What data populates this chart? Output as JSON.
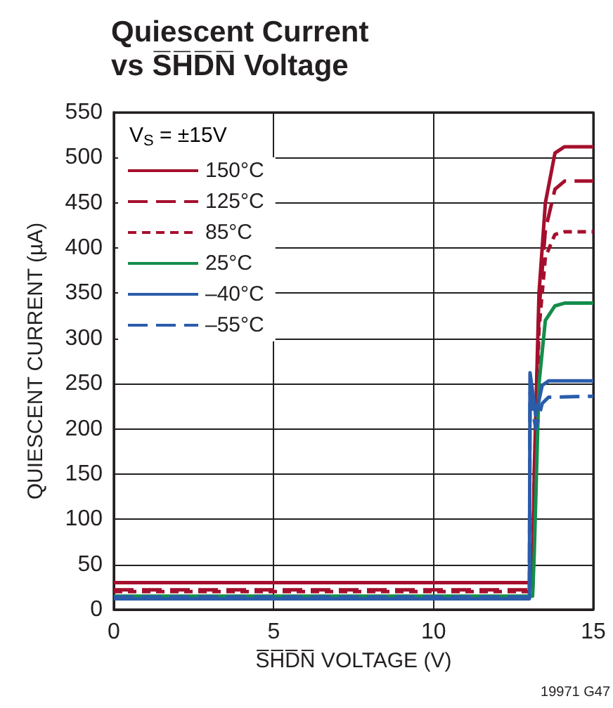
{
  "chart_data": {
    "type": "line",
    "title": "Quiescent Current",
    "subtitle": "vs S̅H̅D̅N̅ Voltage",
    "xlabel": "S̅H̅D̅N̅ VOLTAGE (V)",
    "ylabel": "QUIESCENT CURRENT (µA)",
    "legend_title": "V$_{S}$ = ±15V",
    "annotations": [
      "19971 G47"
    ],
    "xlim": [
      0,
      15
    ],
    "xticks": [
      0,
      5,
      10,
      15
    ],
    "ylim": [
      0,
      550
    ],
    "yticks": [
      0,
      50,
      100,
      150,
      200,
      250,
      300,
      350,
      400,
      450,
      500,
      550
    ],
    "grid": true,
    "legend": "top left",
    "marker": "none",
    "series": [
      {
        "name": "150°C",
        "color": "#a50f2d",
        "line_style": "solid",
        "x": [
          0,
          13.1,
          13.15,
          13.3,
          13.5,
          13.8,
          14.1,
          15
        ],
        "values": [
          30,
          30,
          150,
          350,
          450,
          505,
          512,
          512
        ]
      },
      {
        "name": "125°C",
        "color": "#a50f2d",
        "line_style": "dashed",
        "x": [
          0,
          13.1,
          13.15,
          13.3,
          13.5,
          13.8,
          14.1,
          15
        ],
        "values": [
          22,
          22,
          140,
          330,
          420,
          465,
          474,
          474
        ]
      },
      {
        "name": "85°C",
        "color": "#a50f2d",
        "line_style": "dotted",
        "x": [
          0,
          13.1,
          13.15,
          13.3,
          13.5,
          13.8,
          14.1,
          15
        ],
        "values": [
          20,
          20,
          130,
          310,
          390,
          415,
          418,
          418
        ]
      },
      {
        "name": "25°C",
        "color": "#138d4b",
        "line_style": "solid",
        "x": [
          0,
          13.1,
          13.15,
          13.3,
          13.5,
          13.8,
          14.1,
          15
        ],
        "values": [
          15,
          15,
          60,
          250,
          320,
          336,
          339,
          339
        ]
      },
      {
        "name": "–40°C",
        "color": "#2a5caa",
        "line_style": "solid",
        "x": [
          0,
          13.0,
          13.02,
          13.2,
          13.4,
          13.6,
          15
        ],
        "values": [
          12,
          12,
          262,
          215,
          248,
          253,
          253
        ]
      },
      {
        "name": "–55°C",
        "color": "#2a5caa",
        "line_style": "dashed",
        "x": [
          0,
          13.0,
          13.02,
          13.2,
          13.4,
          13.6,
          15
        ],
        "values": [
          14,
          14,
          240,
          200,
          228,
          235,
          236
        ]
      }
    ]
  }
}
